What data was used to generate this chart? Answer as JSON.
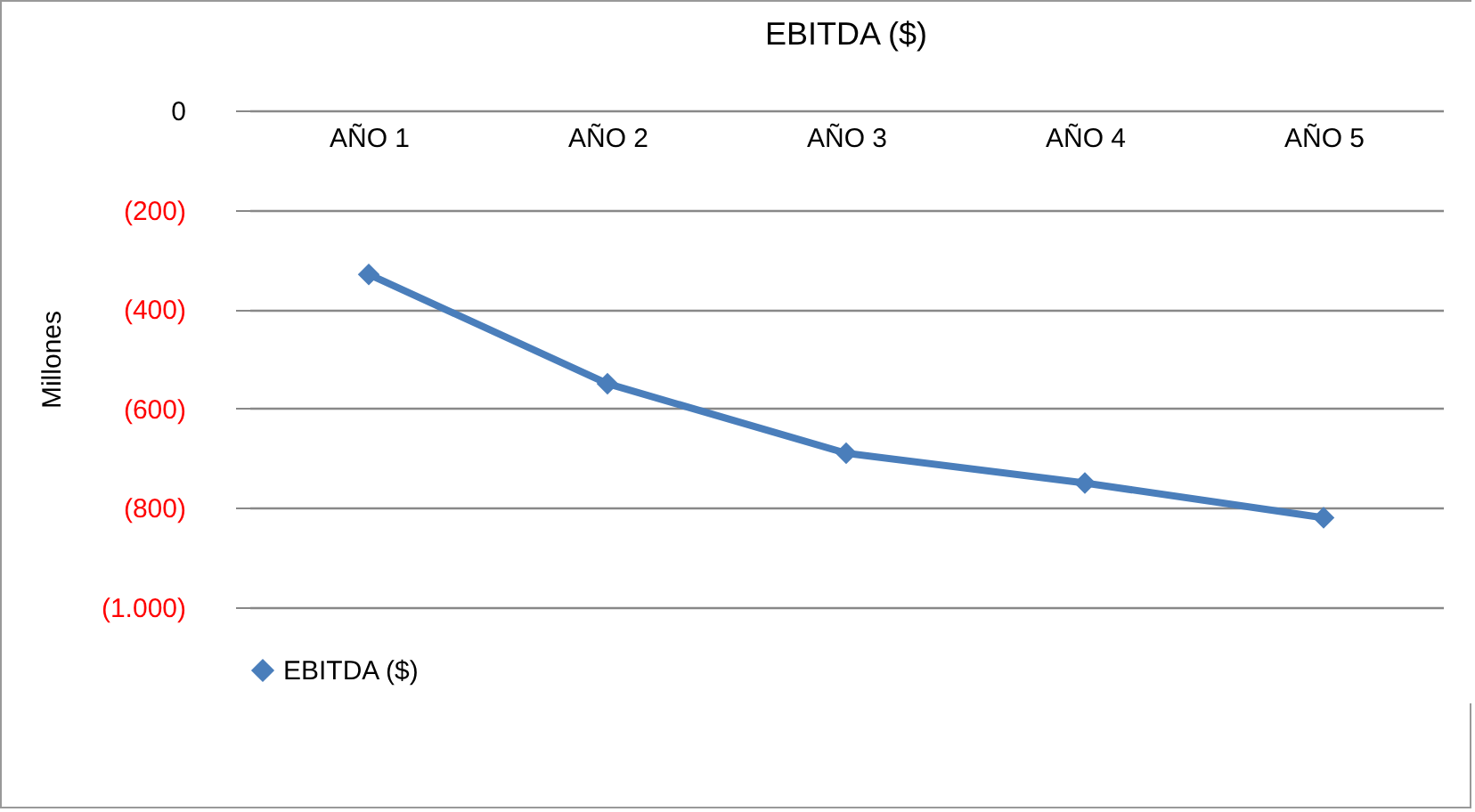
{
  "chart_data": {
    "type": "line",
    "title": "EBITDA ($)",
    "ylabel": "Millones",
    "categories": [
      "AÑO 1",
      "AÑO 2",
      "AÑO 3",
      "AÑO 4",
      "AÑO 5"
    ],
    "series": [
      {
        "name": "EBITDA ($)",
        "color": "#4a7ebb",
        "values": [
          -330,
          -550,
          -690,
          -750,
          -820
        ]
      }
    ],
    "ylim": [
      -1000,
      0
    ],
    "yticks": [
      {
        "value": -1000,
        "label": "(1.000)"
      },
      {
        "value": -800,
        "label": "(800)"
      },
      {
        "value": -600,
        "label": "(600)"
      },
      {
        "value": -400,
        "label": "(400)"
      },
      {
        "value": -200,
        "label": "(200)"
      },
      0
    ],
    "grid": "y",
    "legend": "bottom",
    "marker": "diamond",
    "line_style": "solid"
  }
}
